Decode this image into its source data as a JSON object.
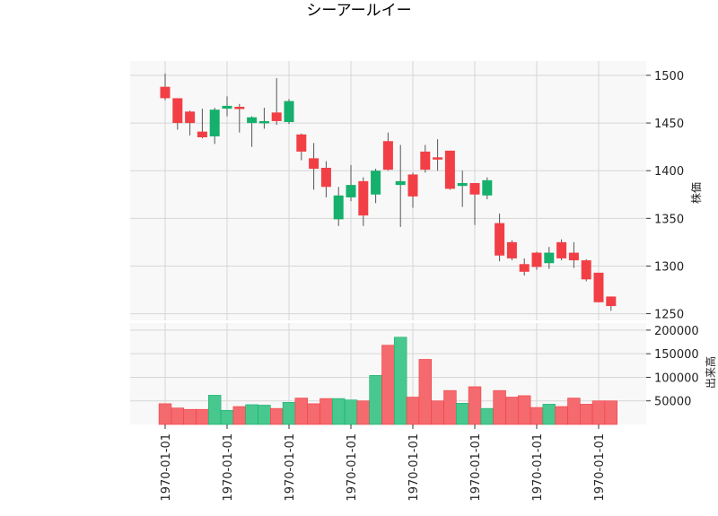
{
  "chart_data": {
    "type": "candlestick",
    "title": "シーアールイー",
    "price_panel": {
      "ylabel": "株価",
      "ylim": [
        1243,
        1515
      ],
      "yticks": [
        1250,
        1300,
        1350,
        1400,
        1450,
        1500
      ],
      "grid": true
    },
    "volume_panel": {
      "ylabel": "出来高",
      "ylim": [
        0,
        215000
      ],
      "yticks": [
        50000,
        100000,
        150000,
        200000
      ],
      "ytick_labels": [
        "50000",
        "100000",
        "150000",
        "200000"
      ],
      "grid": true
    },
    "xtick_labels": [
      "1970-01-01",
      "1970-01-01",
      "1970-01-01",
      "1970-01-01",
      "1970-01-01",
      "1970-01-01",
      "1970-01-01",
      "1970-01-01"
    ],
    "xtick_positions": [
      0,
      5,
      10,
      15,
      20,
      25,
      30,
      35
    ],
    "colors": {
      "up": "#15b06b",
      "down": "#f23f45",
      "wick": "#555555",
      "up_volume": "#48c88e",
      "down_volume": "#f46a6e",
      "panel_bg": "#f8f8f8",
      "grid": "#d6d6d6"
    },
    "candles": [
      {
        "open": 1488,
        "high": 1502,
        "low": 1474,
        "close": 1476
      },
      {
        "open": 1476,
        "high": 1476,
        "low": 1443,
        "close": 1450
      },
      {
        "open": 1462,
        "high": 1463,
        "low": 1437,
        "close": 1450
      },
      {
        "open": 1441,
        "high": 1465,
        "low": 1434,
        "close": 1435
      },
      {
        "open": 1436,
        "high": 1466,
        "low": 1428,
        "close": 1464
      },
      {
        "open": 1465,
        "high": 1478,
        "low": 1457,
        "close": 1468
      },
      {
        "open": 1467,
        "high": 1470,
        "low": 1440,
        "close": 1465
      },
      {
        "open": 1450,
        "high": 1457,
        "low": 1425,
        "close": 1456
      },
      {
        "open": 1451,
        "high": 1466,
        "low": 1444,
        "close": 1452
      },
      {
        "open": 1461,
        "high": 1497,
        "low": 1448,
        "close": 1452
      },
      {
        "open": 1451,
        "high": 1475,
        "low": 1449,
        "close": 1473
      },
      {
        "open": 1438,
        "high": 1439,
        "low": 1411,
        "close": 1420
      },
      {
        "open": 1413,
        "high": 1429,
        "low": 1380,
        "close": 1402
      },
      {
        "open": 1403,
        "high": 1410,
        "low": 1372,
        "close": 1383
      },
      {
        "open": 1349,
        "high": 1383,
        "low": 1342,
        "close": 1374
      },
      {
        "open": 1372,
        "high": 1406,
        "low": 1368,
        "close": 1385
      },
      {
        "open": 1389,
        "high": 1393,
        "low": 1342,
        "close": 1353
      },
      {
        "open": 1375,
        "high": 1402,
        "low": 1366,
        "close": 1400
      },
      {
        "open": 1431,
        "high": 1440,
        "low": 1400,
        "close": 1401
      },
      {
        "open": 1385,
        "high": 1427,
        "low": 1341,
        "close": 1389
      },
      {
        "open": 1396,
        "high": 1398,
        "low": 1361,
        "close": 1373
      },
      {
        "open": 1420,
        "high": 1427,
        "low": 1398,
        "close": 1401
      },
      {
        "open": 1414,
        "high": 1433,
        "low": 1400,
        "close": 1412
      },
      {
        "open": 1421,
        "high": 1421,
        "low": 1380,
        "close": 1381
      },
      {
        "open": 1384,
        "high": 1400,
        "low": 1362,
        "close": 1387
      },
      {
        "open": 1387,
        "high": 1387,
        "low": 1343,
        "close": 1375
      },
      {
        "open": 1374,
        "high": 1393,
        "low": 1370,
        "close": 1390
      },
      {
        "open": 1345,
        "high": 1355,
        "low": 1305,
        "close": 1311
      },
      {
        "open": 1325,
        "high": 1327,
        "low": 1306,
        "close": 1308
      },
      {
        "open": 1302,
        "high": 1308,
        "low": 1290,
        "close": 1294
      },
      {
        "open": 1314,
        "high": 1315,
        "low": 1296,
        "close": 1299
      },
      {
        "open": 1303,
        "high": 1320,
        "low": 1297,
        "close": 1314
      },
      {
        "open": 1325,
        "high": 1328,
        "low": 1306,
        "close": 1308
      },
      {
        "open": 1314,
        "high": 1325,
        "low": 1298,
        "close": 1306
      },
      {
        "open": 1306,
        "high": 1307,
        "low": 1284,
        "close": 1286
      },
      {
        "open": 1293,
        "high": 1293,
        "low": 1262,
        "close": 1262
      },
      {
        "open": 1268,
        "high": 1268,
        "low": 1253,
        "close": 1258
      }
    ],
    "volume": [
      44000,
      35000,
      32000,
      32000,
      62000,
      30000,
      38000,
      42000,
      41000,
      34000,
      47000,
      56000,
      44000,
      55000,
      55000,
      52000,
      50000,
      104000,
      168000,
      185000,
      58000,
      138000,
      50000,
      72000,
      45000,
      80000,
      34000,
      72000,
      58000,
      61000,
      36000,
      43000,
      38000,
      56000,
      43000,
      50000,
      50000
    ]
  }
}
